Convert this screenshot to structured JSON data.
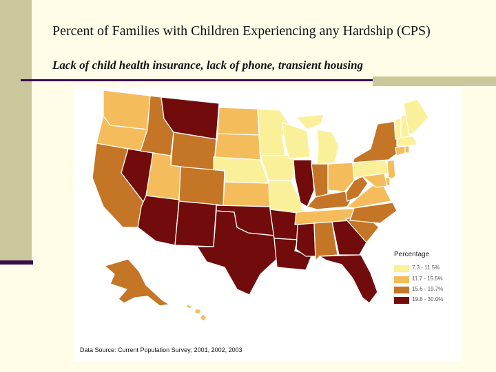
{
  "slide": {
    "title": "Percent of Families with Children Experiencing any Hardship (CPS)",
    "subtitle": "Lack of child health insurance, lack of phone, transient housing",
    "source": "Data Source: Current Population Survey; 2001, 2002, 2003"
  },
  "legend": {
    "title": "Percentage",
    "classes": [
      {
        "label": "7.3 - 11.5%",
        "color": "#fbf09a"
      },
      {
        "label": "11.7 - 15.5%",
        "color": "#f5bc5c"
      },
      {
        "label": "15.6 - 19.7%",
        "color": "#c47526"
      },
      {
        "label": "19.8 - 30.0%",
        "color": "#720c0c"
      }
    ]
  },
  "states": [
    {
      "name": "WA",
      "class": 1
    },
    {
      "name": "OR",
      "class": 1
    },
    {
      "name": "CA",
      "class": 2
    },
    {
      "name": "NV",
      "class": 3
    },
    {
      "name": "ID",
      "class": 2
    },
    {
      "name": "MT",
      "class": 3
    },
    {
      "name": "WY",
      "class": 2
    },
    {
      "name": "UT",
      "class": 1
    },
    {
      "name": "AZ",
      "class": 3
    },
    {
      "name": "CO",
      "class": 2
    },
    {
      "name": "NM",
      "class": 3
    },
    {
      "name": "ND",
      "class": 1
    },
    {
      "name": "SD",
      "class": 1
    },
    {
      "name": "NE",
      "class": 0
    },
    {
      "name": "KS",
      "class": 1
    },
    {
      "name": "OK",
      "class": 3
    },
    {
      "name": "TX",
      "class": 3
    },
    {
      "name": "MN",
      "class": 0
    },
    {
      "name": "IA",
      "class": 0
    },
    {
      "name": "MO",
      "class": 0
    },
    {
      "name": "AR",
      "class": 3
    },
    {
      "name": "LA",
      "class": 3
    },
    {
      "name": "WI",
      "class": 0
    },
    {
      "name": "IL",
      "class": 3
    },
    {
      "name": "MI",
      "class": 0
    },
    {
      "name": "IN",
      "class": 2
    },
    {
      "name": "OH",
      "class": 1
    },
    {
      "name": "KY",
      "class": 2
    },
    {
      "name": "TN",
      "class": 1
    },
    {
      "name": "MS",
      "class": 3
    },
    {
      "name": "AL",
      "class": 2
    },
    {
      "name": "GA",
      "class": 3
    },
    {
      "name": "FL",
      "class": 3
    },
    {
      "name": "SC",
      "class": 2
    },
    {
      "name": "NC",
      "class": 2
    },
    {
      "name": "VA",
      "class": 1
    },
    {
      "name": "WV",
      "class": 2
    },
    {
      "name": "PA",
      "class": 0
    },
    {
      "name": "NY",
      "class": 2
    },
    {
      "name": "NJ",
      "class": 1
    },
    {
      "name": "DE",
      "class": 1
    },
    {
      "name": "MD",
      "class": 1
    },
    {
      "name": "CT",
      "class": 1
    },
    {
      "name": "RI",
      "class": 1
    },
    {
      "name": "MA",
      "class": 0
    },
    {
      "name": "VT",
      "class": 0
    },
    {
      "name": "NH",
      "class": 0
    },
    {
      "name": "ME",
      "class": 0
    },
    {
      "name": "AK",
      "class": 2
    },
    {
      "name": "HI",
      "class": 1
    }
  ]
}
